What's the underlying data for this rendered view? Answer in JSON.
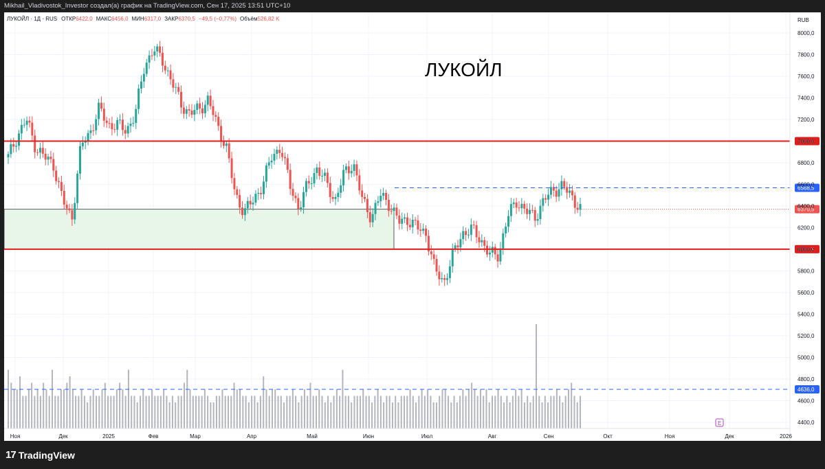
{
  "header": {
    "attribution": "Mikhail_Vladivostok_Investor создал(а) график на TradingView.com, Сен 17, 2025 13:51 UTC+10"
  },
  "legend": {
    "symbol": "ЛУКОЙЛ · 1Д · RUS",
    "open_label": "ОТКР",
    "open": "6422,0",
    "high_label": "МАКС",
    "high": "6456,0",
    "low_label": "МИН",
    "low": "6317,0",
    "close_label": "ЗАКР",
    "close": "6370,5",
    "change": "−49,5 (−0,77%)",
    "volume_label": "Объём",
    "volume": "526,82 K"
  },
  "annotation": {
    "title": "ЛУКОЙЛ"
  },
  "footer": {
    "brand": "TradingView",
    "logo_icon": "tradingview-logo-icon"
  },
  "colors": {
    "up": "#26a69a",
    "down": "#ef5350",
    "level": "#e01e1e",
    "dashed": "#2962ff",
    "zone": "#e8f5e9"
  },
  "chart_data": {
    "type": "candlestick",
    "currency": "RUB",
    "yaxis": {
      "ticks": [
        "8000,0",
        "7800,0",
        "7600,0",
        "7400,0",
        "7200,0",
        "7000,0",
        "6800,0",
        "6600,0",
        "6400,0",
        "6200,0",
        "6000,0",
        "5800,0",
        "5600,0",
        "5400,0",
        "5200,0",
        "5000,0",
        "4800,0",
        "4600,0",
        "4400,0"
      ],
      "range": [
        4300,
        8100
      ]
    },
    "xaxis": {
      "labels": [
        "Ноя",
        "Дек",
        "2025",
        "Фев",
        "Мар",
        "Апр",
        "Май",
        "Июн",
        "Июл",
        "Авг",
        "Сен",
        "Окт",
        "Ноя",
        "Дек",
        "2026"
      ]
    },
    "levels": [
      {
        "kind": "solid",
        "value": 7000,
        "label": "7000,0"
      },
      {
        "kind": "solid",
        "value": 6000.5,
        "label": "6000,5"
      },
      {
        "kind": "dashed",
        "value": 6568.5,
        "label": "6568,5"
      },
      {
        "kind": "last-price",
        "value": 6370.5,
        "label": "6370,5"
      },
      {
        "kind": "volume-dashed",
        "value": 4636,
        "label": "4636,0"
      }
    ],
    "zone": {
      "top": 6370,
      "bottom": 6000.5
    },
    "close_path": [
      [
        "Ноя",
        6850
      ],
      [
        "Ноя",
        7050
      ],
      [
        "Ноя",
        7200
      ],
      [
        "Дек",
        6950
      ],
      [
        "Дек",
        6850
      ],
      [
        "Дек",
        6780
      ],
      [
        "Дек",
        6450
      ],
      [
        "Дек",
        6280
      ],
      [
        "2025",
        6950
      ],
      [
        "2025",
        7080
      ],
      [
        "2025",
        7300
      ],
      [
        "2025",
        7150
      ],
      [
        "Фев",
        7150
      ],
      [
        "Фев",
        7100
      ],
      [
        "Фев",
        7250
      ],
      [
        "Фев",
        7700
      ],
      [
        "Фев",
        7850
      ],
      [
        "Мар",
        7750
      ],
      [
        "Мар",
        7550
      ],
      [
        "Мар",
        7350
      ],
      [
        "Мар",
        7250
      ],
      [
        "Мар",
        7300
      ],
      [
        "Мар",
        7380
      ],
      [
        "Мар",
        7150
      ],
      [
        "Апр",
        6950
      ],
      [
        "Апр",
        6500
      ],
      [
        "Апр",
        6350
      ],
      [
        "Апр",
        6450
      ],
      [
        "Апр",
        6600
      ],
      [
        "Апр",
        6850
      ],
      [
        "Май",
        6950
      ],
      [
        "Май",
        6600
      ],
      [
        "Май",
        6380
      ],
      [
        "Май",
        6600
      ],
      [
        "Май",
        6750
      ],
      [
        "Май",
        6620
      ],
      [
        "Июн",
        6450
      ],
      [
        "Июн",
        6700
      ],
      [
        "Июн",
        6800
      ],
      [
        "Июн",
        6450
      ],
      [
        "Июн",
        6300
      ],
      [
        "Июн",
        6500
      ],
      [
        "Июн",
        6420
      ],
      [
        "Июн",
        6250
      ],
      [
        "Июл",
        6280
      ],
      [
        "Июл",
        6200
      ],
      [
        "Июл",
        6150
      ],
      [
        "Июл",
        5800
      ],
      [
        "Июл",
        5700
      ],
      [
        "Июл",
        5950
      ],
      [
        "Июл",
        6150
      ],
      [
        "Июл",
        6180
      ],
      [
        "Авг",
        6100
      ],
      [
        "Авг",
        5950
      ],
      [
        "Авг",
        5950
      ],
      [
        "Авг",
        6300
      ],
      [
        "Авг",
        6450
      ],
      [
        "Авг",
        6350
      ],
      [
        "Авг",
        6300
      ],
      [
        "Сен",
        6450
      ],
      [
        "Сен",
        6550
      ],
      [
        "Сен",
        6580
      ],
      [
        "Сен",
        6500
      ],
      [
        "Сен",
        6370.5
      ]
    ],
    "volume": [
      9,
      7,
      6,
      6,
      8,
      5,
      5,
      6,
      7,
      5,
      6,
      5,
      7,
      6,
      5,
      9,
      5,
      5,
      6,
      6,
      7,
      8,
      6,
      5,
      5,
      6,
      5,
      4,
      5,
      6,
      5,
      5,
      6,
      7,
      5,
      5,
      5,
      6,
      7,
      6,
      5,
      9,
      5,
      5,
      4,
      5,
      6,
      5,
      5,
      6,
      5,
      5,
      5,
      6,
      5,
      4,
      5,
      4,
      5,
      5,
      7,
      9,
      6,
      5,
      5,
      5,
      5,
      6,
      5,
      4,
      4,
      5,
      5,
      6,
      5,
      5,
      5,
      7,
      6,
      6,
      5,
      5,
      4,
      5,
      5,
      4,
      5,
      8,
      6,
      5,
      6,
      6,
      5,
      5,
      4,
      5,
      5,
      6,
      5,
      4,
      5,
      6,
      5,
      7,
      5,
      5,
      6,
      5,
      4,
      5,
      4,
      5,
      6,
      5,
      9,
      5,
      5,
      4,
      5,
      5,
      5,
      6,
      5,
      5,
      4,
      5,
      6,
      5,
      4,
      5,
      5,
      4,
      5,
      4,
      5,
      5,
      5,
      6,
      5,
      4,
      5,
      6,
      5,
      6,
      5,
      4,
      4,
      5,
      6,
      6,
      5,
      4,
      5,
      4,
      5,
      6,
      5,
      6,
      7,
      6,
      5,
      6,
      5,
      6,
      4,
      5,
      5,
      6,
      5,
      4,
      5,
      4,
      5,
      6,
      5,
      6,
      4,
      5,
      4,
      5,
      16,
      5,
      4,
      5,
      4,
      5,
      5,
      6,
      5,
      4,
      5,
      6,
      7,
      5,
      4,
      5
    ]
  }
}
